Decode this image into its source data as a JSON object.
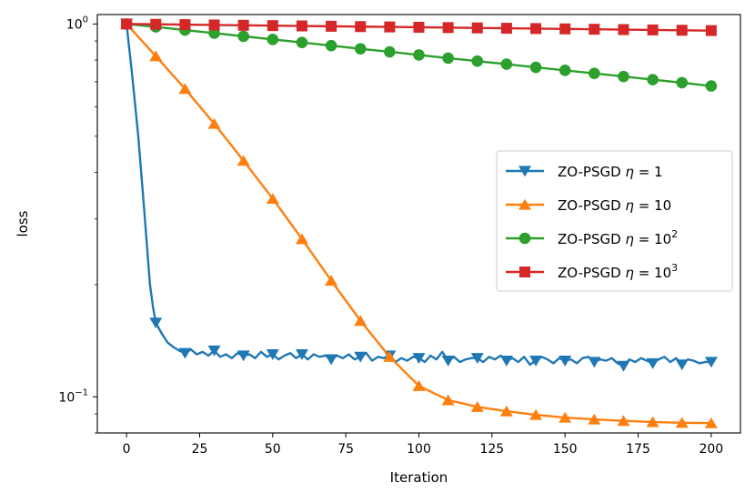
{
  "chart_data": {
    "type": "line",
    "xlabel": "Iteration",
    "ylabel": "loss",
    "xlim": [
      -10,
      210
    ],
    "ylim": [
      0.08,
      1.06
    ],
    "yscale": "log",
    "xticks": [
      0,
      25,
      50,
      75,
      100,
      125,
      150,
      175,
      200
    ],
    "yticks": [
      {
        "value": 1.0,
        "base": "10",
        "exp": "0"
      },
      {
        "value": 0.1,
        "base": "10",
        "exp": "−1"
      }
    ],
    "grid": false,
    "legend_position": "center-right",
    "series": [
      {
        "name": "ZO-PSGD η = 1",
        "legend_prefix": "ZO-PSGD ",
        "legend_eta": "η",
        "legend_eq": " = ",
        "legend_val": "1",
        "legend_sup": "",
        "color": "#1f77b4",
        "marker": "triangle-down",
        "x": [
          0,
          2,
          4,
          6,
          8,
          9,
          10,
          12,
          14,
          16,
          18,
          20,
          22,
          24,
          26,
          28,
          30,
          32,
          34,
          36,
          38,
          40,
          42,
          44,
          46,
          48,
          50,
          52,
          54,
          56,
          58,
          60,
          62,
          64,
          66,
          68,
          70,
          72,
          74,
          76,
          78,
          80,
          82,
          84,
          86,
          88,
          90,
          92,
          94,
          96,
          98,
          100,
          102,
          104,
          106,
          108,
          110,
          112,
          114,
          116,
          118,
          120,
          122,
          124,
          126,
          128,
          130,
          132,
          134,
          136,
          138,
          140,
          142,
          144,
          146,
          148,
          150,
          152,
          154,
          156,
          158,
          160,
          162,
          164,
          166,
          168,
          170,
          172,
          174,
          176,
          178,
          180,
          182,
          184,
          186,
          188,
          190,
          192,
          194,
          196,
          198,
          200
        ],
        "y": [
          1.0,
          0.72,
          0.5,
          0.32,
          0.2,
          0.175,
          0.158,
          0.148,
          0.14,
          0.136,
          0.133,
          0.131,
          0.134,
          0.13,
          0.132,
          0.129,
          0.133,
          0.128,
          0.13,
          0.127,
          0.131,
          0.129,
          0.13,
          0.127,
          0.132,
          0.128,
          0.13,
          0.126,
          0.129,
          0.131,
          0.127,
          0.13,
          0.126,
          0.13,
          0.128,
          0.129,
          0.126,
          0.129,
          0.127,
          0.13,
          0.126,
          0.128,
          0.131,
          0.125,
          0.128,
          0.127,
          0.129,
          0.124,
          0.127,
          0.125,
          0.128,
          0.127,
          0.124,
          0.129,
          0.126,
          0.132,
          0.125,
          0.128,
          0.124,
          0.126,
          0.127,
          0.127,
          0.124,
          0.128,
          0.126,
          0.129,
          0.125,
          0.127,
          0.124,
          0.128,
          0.122,
          0.125,
          0.128,
          0.126,
          0.123,
          0.127,
          0.125,
          0.126,
          0.123,
          0.127,
          0.128,
          0.124,
          0.126,
          0.125,
          0.127,
          0.123,
          0.121,
          0.126,
          0.124,
          0.127,
          0.125,
          0.123,
          0.126,
          0.128,
          0.124,
          0.127,
          0.122,
          0.126,
          0.125,
          0.123,
          0.124,
          0.124
        ],
        "marker_x": [
          0,
          10,
          20,
          30,
          40,
          50,
          60,
          70,
          80,
          90,
          100,
          110,
          120,
          130,
          140,
          150,
          160,
          170,
          180,
          190,
          200
        ],
        "marker_y": [
          1.0,
          0.158,
          0.131,
          0.133,
          0.129,
          0.13,
          0.13,
          0.126,
          0.128,
          0.129,
          0.127,
          0.125,
          0.127,
          0.125,
          0.125,
          0.125,
          0.124,
          0.121,
          0.123,
          0.122,
          0.124
        ]
      },
      {
        "name": "ZO-PSGD η = 10",
        "legend_prefix": "ZO-PSGD ",
        "legend_eta": "η",
        "legend_eq": " = ",
        "legend_val": "10",
        "legend_sup": "",
        "color": "#ff7f0e",
        "marker": "triangle-up",
        "x": [
          0,
          10,
          20,
          30,
          40,
          50,
          60,
          70,
          80,
          90,
          100,
          110,
          120,
          130,
          140,
          150,
          160,
          170,
          180,
          190,
          200
        ],
        "y": [
          1.0,
          0.82,
          0.67,
          0.54,
          0.43,
          0.34,
          0.265,
          0.205,
          0.16,
          0.128,
          0.107,
          0.098,
          0.094,
          0.0915,
          0.0895,
          0.088,
          0.087,
          0.0862,
          0.0856,
          0.0852,
          0.085
        ],
        "marker_x": [
          0,
          10,
          20,
          30,
          40,
          50,
          60,
          70,
          80,
          90,
          100,
          110,
          120,
          130,
          140,
          150,
          160,
          170,
          180,
          190,
          200
        ],
        "marker_y": [
          1.0,
          0.82,
          0.67,
          0.54,
          0.43,
          0.34,
          0.265,
          0.205,
          0.16,
          0.128,
          0.107,
          0.098,
          0.094,
          0.0915,
          0.0895,
          0.088,
          0.087,
          0.0862,
          0.0856,
          0.0852,
          0.085
        ]
      },
      {
        "name": "ZO-PSGD η = 10^2",
        "legend_prefix": "ZO-PSGD ",
        "legend_eta": "η",
        "legend_eq": " = ",
        "legend_val": "10",
        "legend_sup": "2",
        "color": "#2ca02c",
        "marker": "circle",
        "x": [
          0,
          10,
          20,
          30,
          40,
          50,
          60,
          70,
          80,
          90,
          100,
          110,
          120,
          130,
          140,
          150,
          160,
          170,
          180,
          190,
          200
        ],
        "y": [
          1.0,
          0.982,
          0.963,
          0.945,
          0.927,
          0.909,
          0.892,
          0.875,
          0.858,
          0.842,
          0.826,
          0.81,
          0.795,
          0.78,
          0.765,
          0.751,
          0.737,
          0.723,
          0.709,
          0.696,
          0.682
        ],
        "marker_x": [
          0,
          10,
          20,
          30,
          40,
          50,
          60,
          70,
          80,
          90,
          100,
          110,
          120,
          130,
          140,
          150,
          160,
          170,
          180,
          190,
          200
        ],
        "marker_y": [
          1.0,
          0.982,
          0.963,
          0.945,
          0.927,
          0.909,
          0.892,
          0.875,
          0.858,
          0.842,
          0.826,
          0.81,
          0.795,
          0.78,
          0.765,
          0.751,
          0.737,
          0.723,
          0.709,
          0.696,
          0.682
        ]
      },
      {
        "name": "ZO-PSGD η = 10^3",
        "legend_prefix": "ZO-PSGD ",
        "legend_eta": "η",
        "legend_eq": " = ",
        "legend_val": "10",
        "legend_sup": "3",
        "color": "#d62728",
        "marker": "square",
        "x": [
          0,
          10,
          20,
          30,
          40,
          50,
          60,
          70,
          80,
          90,
          100,
          110,
          120,
          130,
          140,
          150,
          160,
          170,
          180,
          190,
          200
        ],
        "y": [
          1.0,
          0.998,
          0.996,
          0.994,
          0.992,
          0.99,
          0.988,
          0.986,
          0.984,
          0.982,
          0.98,
          0.978,
          0.976,
          0.974,
          0.972,
          0.97,
          0.968,
          0.966,
          0.964,
          0.962,
          0.96
        ],
        "marker_x": [
          0,
          10,
          20,
          30,
          40,
          50,
          60,
          70,
          80,
          90,
          100,
          110,
          120,
          130,
          140,
          150,
          160,
          170,
          180,
          190,
          200
        ],
        "marker_y": [
          1.0,
          0.998,
          0.996,
          0.994,
          0.992,
          0.99,
          0.988,
          0.986,
          0.984,
          0.982,
          0.98,
          0.978,
          0.976,
          0.974,
          0.972,
          0.97,
          0.968,
          0.966,
          0.964,
          0.962,
          0.96
        ]
      }
    ]
  }
}
